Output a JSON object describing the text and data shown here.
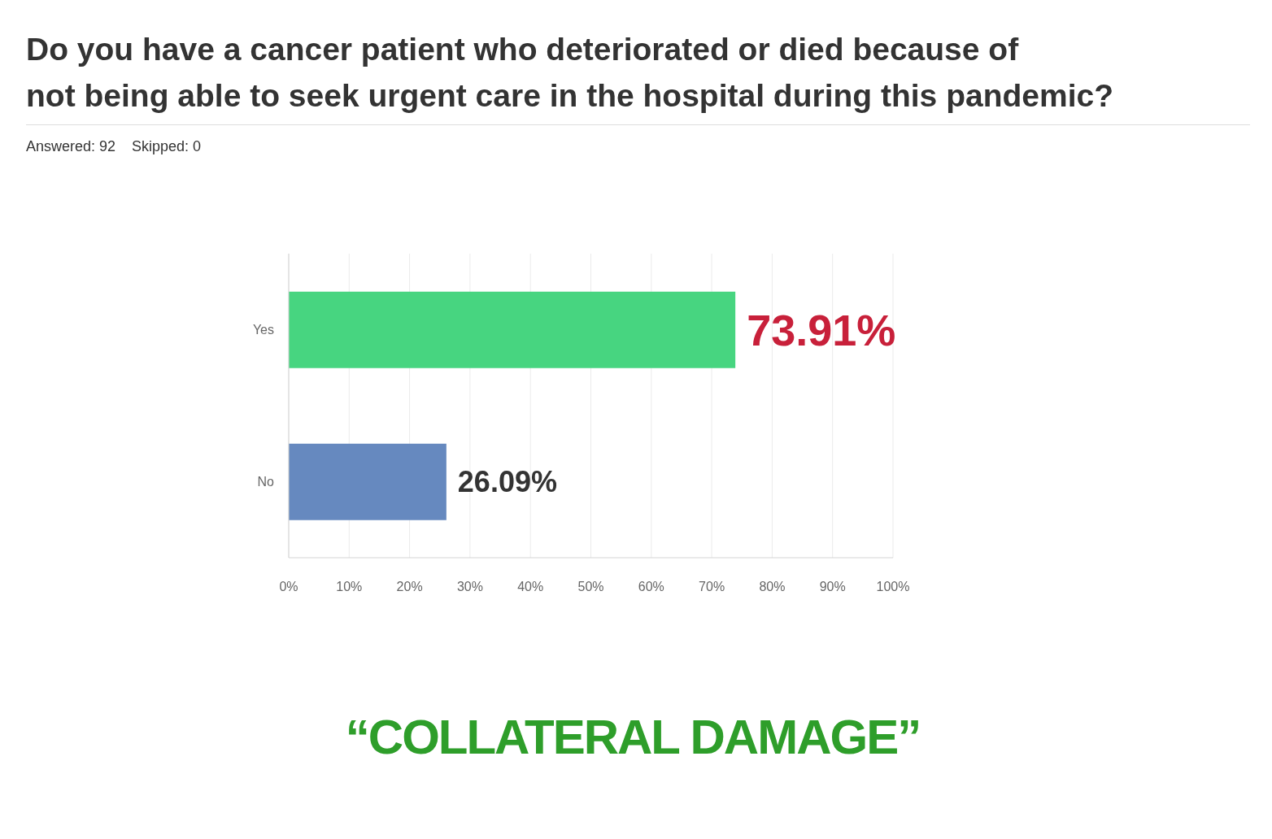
{
  "chart_data": {
    "type": "bar",
    "orientation": "horizontal",
    "title": "Do you have a cancer patient who deteriorated or died because of\nnot being able to seek urgent care in the hospital during this pandemic?",
    "subtitle": "Answered: 92    Skipped: 0",
    "annotations": [
      "“COLLATERAL DAMAGE”"
    ],
    "categories": [
      "Yes",
      "No"
    ],
    "values": [
      73.91,
      26.09
    ],
    "colors": [
      "#47d580",
      "#6689bf"
    ],
    "value_labels": [
      "73.91%",
      "26.09%"
    ],
    "xlim": [
      0,
      100
    ],
    "xticks": [
      {
        "value": 0,
        "label": "0%"
      },
      {
        "value": 10,
        "label": "10%"
      },
      {
        "value": 20,
        "label": "20%"
      },
      {
        "value": 30,
        "label": "30%"
      },
      {
        "value": 40,
        "label": "40%"
      },
      {
        "value": 50,
        "label": "50%"
      },
      {
        "value": 60,
        "label": "60%"
      },
      {
        "value": 70,
        "label": "70%"
      },
      {
        "value": 80,
        "label": "80%"
      },
      {
        "value": 90,
        "label": "90%"
      },
      {
        "value": 100,
        "label": "100%"
      }
    ],
    "grid": "x"
  }
}
